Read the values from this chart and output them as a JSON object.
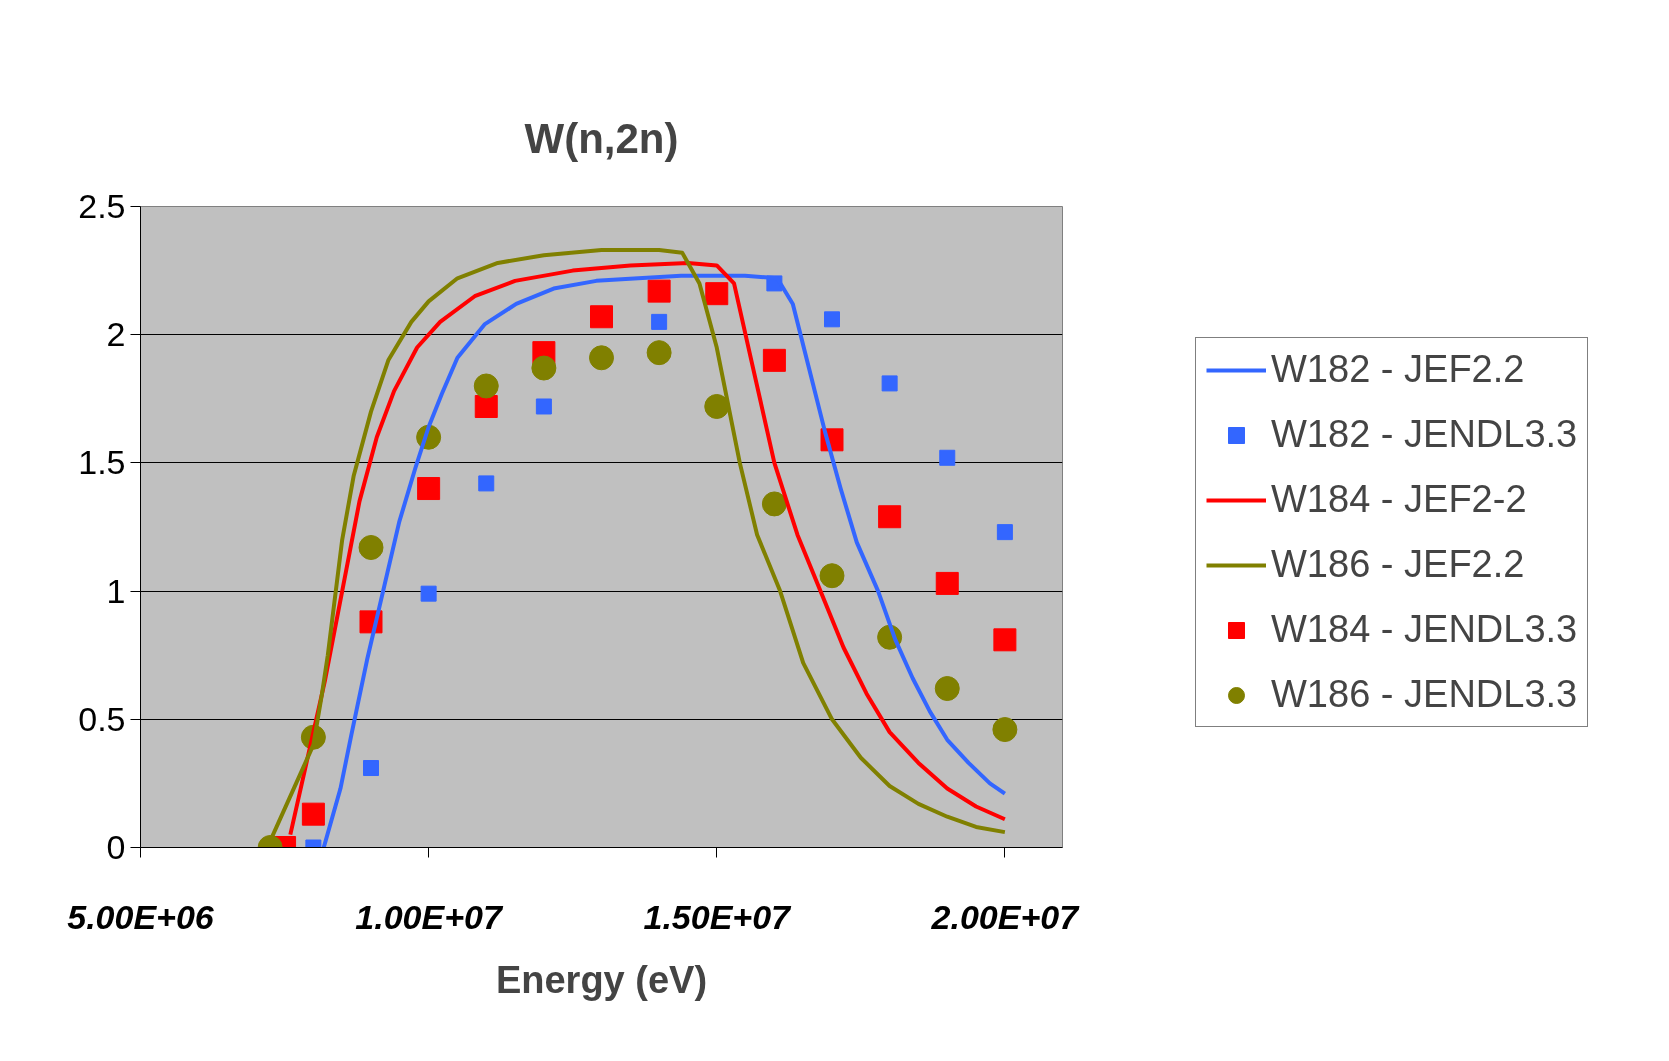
{
  "chart_data": {
    "type": "line",
    "title": "W(n,2n)",
    "xlabel": "Energy (eV)",
    "xlim": [
      5000000,
      21000000
    ],
    "xticks": [
      {
        "value": 5000000,
        "label": "5.00E+06"
      },
      {
        "value": 10000000,
        "label": "1.00E+07"
      },
      {
        "value": 15000000,
        "label": "1.50E+07"
      },
      {
        "value": 20000000,
        "label": "2.00E+07"
      }
    ],
    "ylim": [
      0,
      2.5
    ],
    "yticks": [
      0,
      0.5,
      1,
      1.5,
      2,
      2.5
    ],
    "grid": "y",
    "legend": "right",
    "series": [
      {
        "name": "W182 - JEF2.2",
        "color": "#3366ff",
        "x": [
          8180000,
          8470000,
          8660000,
          8930000,
          9210000,
          9490000,
          9770000,
          10000000,
          10230000,
          10500000,
          10970000,
          11520000,
          12170000,
          12910000,
          13640000,
          14380000,
          15490000,
          16050000,
          16320000,
          16600000,
          16880000,
          17150000,
          17430000,
          17800000,
          18100000,
          18400000,
          18700000,
          19000000,
          19370000,
          19740000,
          20000000
        ],
        "values": [
          0,
          0.23,
          0.44,
          0.73,
          1.0,
          1.27,
          1.48,
          1.64,
          1.77,
          1.91,
          2.04,
          2.12,
          2.18,
          2.21,
          2.22,
          2.23,
          2.23,
          2.22,
          2.12,
          1.87,
          1.62,
          1.4,
          1.19,
          1.0,
          0.81,
          0.66,
          0.53,
          0.42,
          0.33,
          0.25,
          0.21
        ]
      },
      {
        "name": "W182 - JENDL3.3",
        "type": "scatter",
        "marker": "square",
        "color": "#3366ff",
        "x": [
          8000000,
          9000000,
          10000000,
          11000000,
          12000000,
          13000000,
          14000000,
          15000000,
          16000000,
          17000000,
          18000000,
          19000000,
          20000000
        ],
        "values": [
          0,
          0.31,
          0.99,
          1.42,
          1.72,
          null,
          2.05,
          null,
          2.2,
          2.06,
          1.81,
          1.52,
          1.23
        ]
      },
      {
        "name": "W184 - JEF2-2",
        "color": "#ff0000",
        "x": [
          7600000,
          7800000,
          8200000,
          8500000,
          8800000,
          9100000,
          9400000,
          9800000,
          10200000,
          10800000,
          11500000,
          12500000,
          13500000,
          14500000,
          15000000,
          15300000,
          15600000,
          16000000,
          16400000,
          16800000,
          17200000,
          17600000,
          18000000,
          18500000,
          19000000,
          19500000,
          20000000
        ],
        "values": [
          0.05,
          0.25,
          0.65,
          1.0,
          1.35,
          1.6,
          1.78,
          1.95,
          2.05,
          2.15,
          2.21,
          2.25,
          2.27,
          2.28,
          2.27,
          2.2,
          1.9,
          1.5,
          1.22,
          1.0,
          0.78,
          0.6,
          0.45,
          0.33,
          0.23,
          0.16,
          0.11
        ]
      },
      {
        "name": "W186 - JEF2.2",
        "color": "#808000",
        "x": [
          7200000,
          7400000,
          8000000,
          8150000,
          8250000,
          8500000,
          8700000,
          9000000,
          9300000,
          9700000,
          10000000,
          10500000,
          11200000,
          12000000,
          13000000,
          14000000,
          14400000,
          14700000,
          15000000,
          15400000,
          15700000,
          16100000,
          16500000,
          17000000,
          17500000,
          18000000,
          18500000,
          19000000,
          19500000,
          20000000
        ],
        "values": [
          0,
          0.1,
          0.4,
          0.6,
          0.75,
          1.2,
          1.45,
          1.7,
          1.9,
          2.05,
          2.13,
          2.22,
          2.28,
          2.31,
          2.33,
          2.33,
          2.32,
          2.2,
          1.95,
          1.5,
          1.22,
          1.0,
          0.72,
          0.5,
          0.35,
          0.24,
          0.17,
          0.12,
          0.08,
          0.06
        ]
      },
      {
        "name": "W184 - JENDL3.3",
        "type": "scatter",
        "marker": "square",
        "color": "#ff0000",
        "x": [
          7500000,
          8000000,
          9000000,
          10000000,
          11000000,
          12000000,
          13000000,
          14000000,
          15000000,
          16000000,
          17000000,
          18000000,
          19000000,
          20000000
        ],
        "values": [
          0,
          0.13,
          0.88,
          1.4,
          1.72,
          1.93,
          2.07,
          2.17,
          2.16,
          1.9,
          1.59,
          1.29,
          1.03,
          0.81
        ]
      },
      {
        "name": "W186 - JENDL3.3",
        "type": "scatter",
        "marker": "circle",
        "color": "#808000",
        "x": [
          7250000,
          8000000,
          9000000,
          10000000,
          11000000,
          12000000,
          13000000,
          14000000,
          15000000,
          16000000,
          17000000,
          18000000,
          19000000,
          20000000
        ],
        "values": [
          0,
          0.43,
          1.17,
          1.6,
          1.8,
          1.87,
          1.91,
          1.93,
          1.72,
          1.34,
          1.06,
          0.82,
          0.62,
          0.46
        ]
      }
    ]
  }
}
